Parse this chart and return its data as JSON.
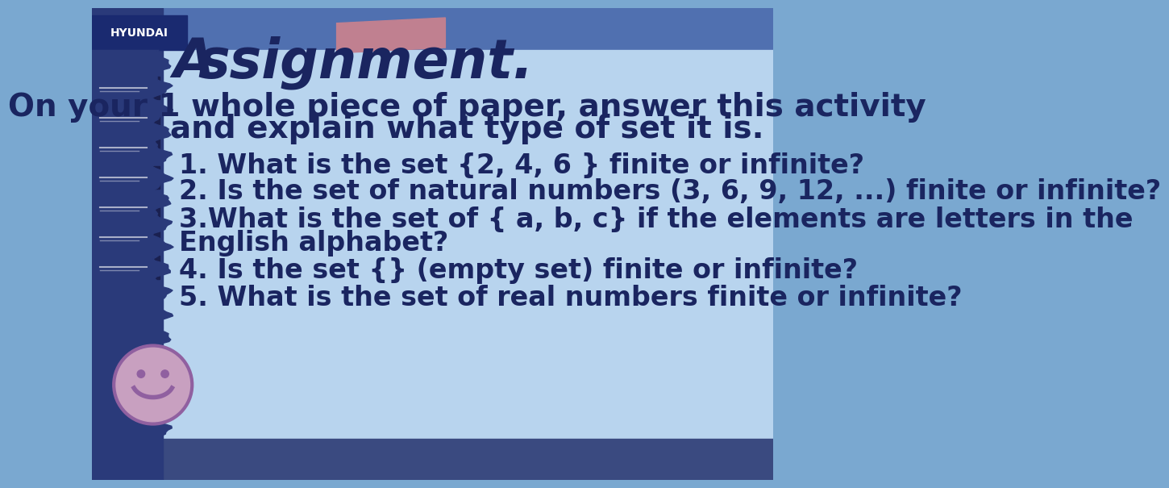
{
  "bg_dark_blue": "#3a5a9a",
  "bg_light_blue": "#a8c8e8",
  "bg_medium_blue": "#7aa8d0",
  "sidebar_color": "#2a3a7a",
  "hyundai_box_color": "#1a2a70",
  "hyundai_text": "HYUNDAI",
  "pink_sticker": "#c08090",
  "assignment_text": "ssignment.",
  "subtitle_line1": "On your 1 whole piece of paper, answer this activity",
  "subtitle_line2": "and explain what type of set it is.",
  "q1": "1. What is the set {2, 4, 6 } finite or infinite?",
  "q2": "2. Is the set of natural numbers (3, 6, 9, 12, ...) finite or infinite?",
  "q3a": "3.What is the set of { a, b, c} if the elements are letters in the",
  "q3b": "English alphabet?",
  "q4": "4. Is the set {} (empty set) finite or infinite?",
  "q5": "5. What is the set of real numbers finite or infinite?",
  "text_dark": "#1a2560",
  "smiley_fill": "#c8a0c0",
  "smiley_outline": "#9060a0",
  "sidebar_boxes": [
    "#cc3333",
    "#334488",
    "#228844",
    "#aa3366",
    "#cc8800",
    "#223355",
    "#223355"
  ],
  "content_bg": "#b8d4ee",
  "top_stripe_color": "#5070b0"
}
